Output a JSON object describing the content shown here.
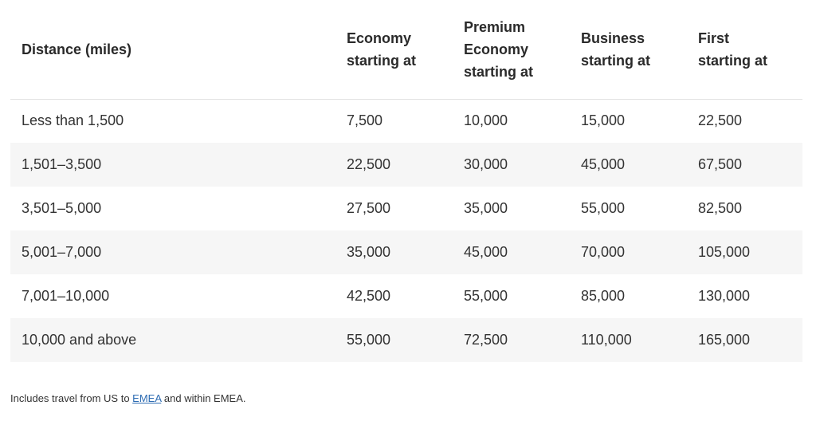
{
  "table": {
    "headers": [
      "Distance (miles)",
      "Economy\nstarting at",
      "Premium\nEconomy\nstarting at",
      "Business\nstarting at",
      "First\nstarting at"
    ],
    "rows": [
      [
        "Less than 1,500",
        "7,500",
        "10,000",
        "15,000",
        "22,500"
      ],
      [
        "1,501–3,500",
        "22,500",
        "30,000",
        "45,000",
        "67,500"
      ],
      [
        "3,501–5,000",
        "27,500",
        "35,000",
        "55,000",
        "82,500"
      ],
      [
        "5,001–7,000",
        "35,000",
        "45,000",
        "70,000",
        "105,000"
      ],
      [
        "7,001–10,000",
        "42,500",
        "55,000",
        "85,000",
        "130,000"
      ],
      [
        "10,000 and above",
        "55,000",
        "72,500",
        "110,000",
        "165,000"
      ]
    ]
  },
  "footnote": {
    "before": "Includes travel from US to ",
    "link": "EMEA",
    "after": " and within EMEA."
  },
  "colors": {
    "stripe": "#f6f6f6",
    "link": "#2f6db3",
    "text": "#333333"
  }
}
